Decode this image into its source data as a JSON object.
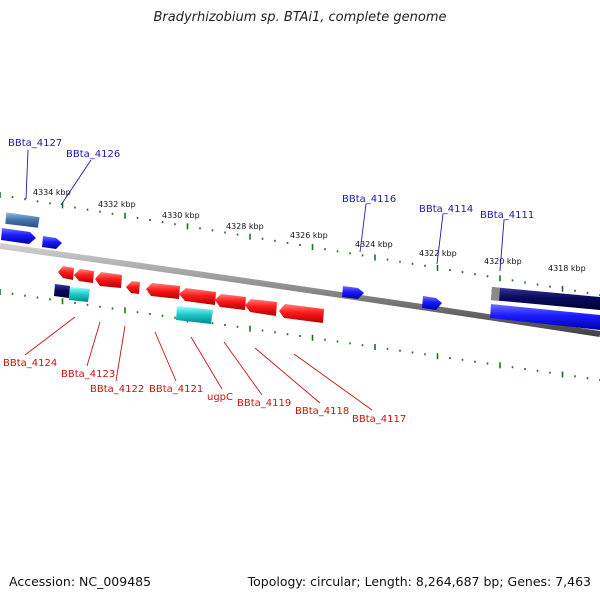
{
  "title": "Bradyrhizobium sp. BTAi1, complete genome",
  "footer": {
    "accession": "Accession: NC_009485",
    "topology": "Topology: circular; Length: 8,264,687 bp; Genes: 7,463"
  },
  "colors": {
    "forward_gene": "#1a1aff",
    "reverse_gene": "#ff1a1a",
    "rna_gene": "#22cccc",
    "dark_gene": "#0a0a60",
    "steel_gene": "#4a7ab0",
    "forward_label": "#1a1aaa",
    "reverse_label": "#cc1111",
    "tick": "#207020",
    "backbone": "#888888"
  },
  "ticks": [
    {
      "label": "4334 kbp"
    },
    {
      "label": "4332 kbp"
    },
    {
      "label": "4330 kbp"
    },
    {
      "label": "4328 kbp"
    },
    {
      "label": "4326 kbp"
    },
    {
      "label": "4324 kbp"
    },
    {
      "label": "4322 kbp"
    },
    {
      "label": "4320 kbp"
    },
    {
      "label": "4318 kbp"
    }
  ],
  "forward_labels": [
    {
      "text": "BBta_4127"
    },
    {
      "text": "BBta_4126"
    },
    {
      "text": "BBta_4116"
    },
    {
      "text": "BBta_4114"
    },
    {
      "text": "BBta_4111"
    }
  ],
  "reverse_labels": [
    {
      "text": "BBta_4124"
    },
    {
      "text": "BBta_4123"
    },
    {
      "text": "BBta_4122"
    },
    {
      "text": "BBta_4121"
    },
    {
      "text": "ugpC"
    },
    {
      "text": "BBta_4119"
    },
    {
      "text": "BBta_4118"
    },
    {
      "text": "BBta_4117"
    }
  ]
}
